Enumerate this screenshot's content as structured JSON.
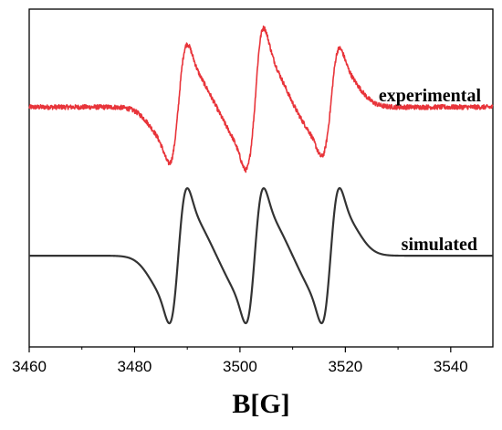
{
  "chart_data": {
    "type": "line",
    "title": "",
    "xlabel": "B[G]",
    "ylabel": "",
    "xlim": [
      3460,
      3548
    ],
    "x_ticks": [
      3460,
      3480,
      3500,
      3520,
      3540
    ],
    "x_tick_labels": [
      "3460",
      "3480",
      "3500",
      "3520",
      "3540"
    ],
    "y_ticks_visible": false,
    "grid": false,
    "legend": "none",
    "series": [
      {
        "name": "experimental",
        "color": "#e8343a",
        "noisy": true,
        "baseline": 1.55,
        "line_centers": [
          3488.3,
          3502.8,
          3517.2
        ],
        "peak_positions": [
          3486.1,
          3500.6,
          3515.1
        ],
        "trough_positions": [
          3490.6,
          3505.1,
          3519.6
        ],
        "peak_values": [
          2.48,
          2.72,
          2.42
        ],
        "trough_values": [
          0.72,
          0.62,
          0.82
        ]
      },
      {
        "name": "simulated",
        "color": "#333333",
        "noisy": false,
        "baseline": -0.65,
        "line_centers": [
          3488.3,
          3502.8,
          3517.2
        ],
        "peak_positions": [
          3486.1,
          3500.6,
          3515.1
        ],
        "trough_positions": [
          3490.6,
          3505.1,
          3519.6
        ],
        "peak_values": [
          0.35,
          0.35,
          0.35
        ],
        "trough_values": [
          -1.65,
          -1.65,
          -1.65
        ]
      }
    ]
  }
}
